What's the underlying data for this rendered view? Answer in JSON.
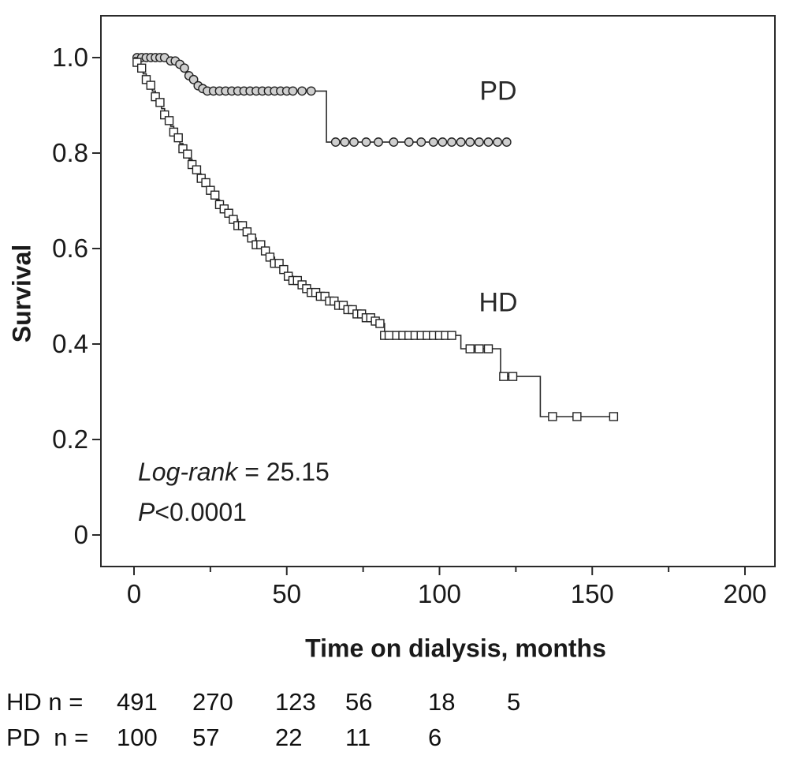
{
  "figure": {
    "background": "#ffffff",
    "line_color": "#2a2a2a",
    "circle_fill": "#cfcfcf",
    "square_fill": "#ffffff"
  },
  "chart_data": {
    "type": "line",
    "subtype": "kaplan-meier-step",
    "title": "",
    "xlabel": "Time on dialysis, months",
    "ylabel": "Survival",
    "xlim": [
      0,
      210
    ],
    "ylim": [
      0,
      1.05
    ],
    "grid": false,
    "legend_position": "inline-labels",
    "xticks": {
      "major": [
        0,
        50,
        100,
        150,
        200
      ],
      "minor": [
        25,
        75,
        125,
        175
      ],
      "labels": [
        "0",
        "50",
        "100",
        "150",
        "200"
      ]
    },
    "yticks": {
      "major": [
        0,
        0.2,
        0.4,
        0.6,
        0.8,
        1.0
      ],
      "labels": [
        "0",
        "0.2",
        "0.4",
        "0.6",
        "0.8",
        "1.0"
      ]
    },
    "annotations": [
      {
        "italic": "Log-rank",
        "rest": " = 25.15"
      },
      {
        "italic": "P",
        "rest": "<0.0001"
      }
    ],
    "series": [
      {
        "name": "PD",
        "marker": "circle",
        "steps": [
          [
            0,
            1.0
          ],
          [
            11,
            1.0
          ],
          [
            12,
            0.993
          ],
          [
            14,
            0.986
          ],
          [
            16,
            0.978
          ],
          [
            17,
            0.97
          ],
          [
            18,
            0.962
          ],
          [
            19,
            0.954
          ],
          [
            20,
            0.947
          ],
          [
            21,
            0.941
          ],
          [
            22,
            0.935
          ],
          [
            23,
            0.93
          ],
          [
            62,
            0.93
          ],
          [
            63,
            0.823
          ],
          [
            122,
            0.823
          ]
        ],
        "censors": [
          1,
          2.5,
          4,
          5.5,
          7,
          8.5,
          10,
          12,
          13.5,
          15,
          16.5,
          18,
          19.5,
          21,
          22.5,
          24,
          26,
          28,
          30,
          32,
          34,
          36,
          38,
          40,
          42,
          44,
          46,
          48,
          50,
          52,
          55,
          58,
          66,
          69,
          72,
          76,
          80,
          85,
          90,
          94,
          98,
          101,
          104,
          107,
          110,
          113,
          116,
          119,
          122
        ]
      },
      {
        "name": "HD",
        "marker": "square",
        "steps": [
          [
            0,
            1.0
          ],
          [
            1,
            0.99
          ],
          [
            2,
            0.978
          ],
          [
            3,
            0.966
          ],
          [
            4,
            0.954
          ],
          [
            5,
            0.942
          ],
          [
            6,
            0.93
          ],
          [
            7,
            0.918
          ],
          [
            8,
            0.906
          ],
          [
            9,
            0.893
          ],
          [
            10,
            0.88
          ],
          [
            11,
            0.868
          ],
          [
            12,
            0.856
          ],
          [
            13,
            0.844
          ],
          [
            14,
            0.832
          ],
          [
            15,
            0.82
          ],
          [
            16,
            0.809
          ],
          [
            17,
            0.798
          ],
          [
            18,
            0.787
          ],
          [
            19,
            0.776
          ],
          [
            20,
            0.765
          ],
          [
            21,
            0.756
          ],
          [
            22,
            0.747
          ],
          [
            23,
            0.738
          ],
          [
            24,
            0.73
          ],
          [
            25,
            0.722
          ],
          [
            26,
            0.712
          ],
          [
            27,
            0.702
          ],
          [
            28,
            0.692
          ],
          [
            29,
            0.683
          ],
          [
            30,
            0.674
          ],
          [
            32,
            0.661
          ],
          [
            34,
            0.648
          ],
          [
            36,
            0.635
          ],
          [
            38,
            0.622
          ],
          [
            40,
            0.608
          ],
          [
            42,
            0.595
          ],
          [
            44,
            0.582
          ],
          [
            46,
            0.569
          ],
          [
            48,
            0.556
          ],
          [
            50,
            0.542
          ],
          [
            52,
            0.533
          ],
          [
            54,
            0.524
          ],
          [
            56,
            0.516
          ],
          [
            58,
            0.508
          ],
          [
            60,
            0.5
          ],
          [
            63,
            0.49
          ],
          [
            66,
            0.481
          ],
          [
            69,
            0.472
          ],
          [
            72,
            0.463
          ],
          [
            75,
            0.455
          ],
          [
            78,
            0.448
          ],
          [
            80,
            0.443
          ],
          [
            82,
            0.418
          ],
          [
            105,
            0.418
          ],
          [
            107,
            0.39
          ],
          [
            119,
            0.39
          ],
          [
            120,
            0.332
          ],
          [
            132,
            0.332
          ],
          [
            133,
            0.248
          ],
          [
            157,
            0.248
          ]
        ],
        "censors": [
          1,
          2.5,
          4,
          5.5,
          7,
          8.5,
          10,
          11.5,
          13,
          14.5,
          16,
          17.5,
          19,
          20.5,
          22,
          23.5,
          25,
          26.5,
          28,
          29.5,
          31,
          32.5,
          34,
          35.5,
          37,
          38.5,
          40,
          41.5,
          43,
          44.5,
          46,
          47.5,
          49,
          50.5,
          52,
          53.5,
          55,
          56.5,
          58,
          59.5,
          61,
          62.5,
          64,
          65.5,
          67,
          68.5,
          70,
          71.5,
          73,
          74.5,
          76,
          77.5,
          79,
          80.5,
          82,
          83.5,
          86,
          88,
          90,
          92,
          94,
          96,
          98,
          100,
          102,
          104,
          110,
          113,
          116,
          121,
          124,
          137,
          145,
          157
        ]
      }
    ]
  },
  "risk_table": {
    "rows": [
      {
        "label": "HD n =",
        "values": [
          "491",
          "270",
          "123",
          "56",
          "18",
          "5"
        ]
      },
      {
        "label": "PD  n =",
        "values": [
          "100",
          "57",
          "22",
          "11",
          "6"
        ]
      }
    ]
  }
}
